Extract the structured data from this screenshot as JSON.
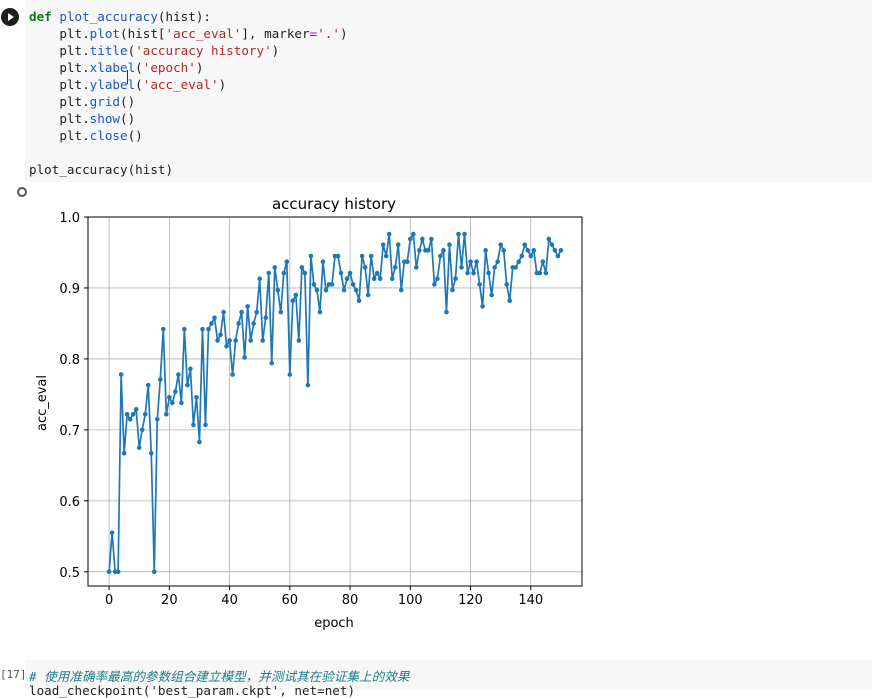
{
  "cell1": {
    "lines": [
      {
        "kw": "def",
        "fn": "plot_accuracy",
        "rest": "(hist):"
      },
      {
        "pre": "    plt.",
        "fn": "plot",
        "mid1": "(hist[",
        "str1": "'acc_eval'",
        "mid2": "], marker",
        "op": "=",
        "str2": "'.'",
        "end": ")"
      },
      {
        "pre": "    plt.",
        "fn": "title",
        "mid1": "(",
        "str1": "'accuracy history'",
        "end": ")"
      },
      {
        "pre": "    plt.",
        "fn": "xlabel",
        "mid1": "(",
        "str1": "'epoch'",
        "end": ")"
      },
      {
        "pre": "    plt.",
        "fn": "ylabel",
        "mid1": "(",
        "str1": "'acc_eval'",
        "end": ")"
      },
      {
        "pre": "    plt.",
        "fn": "grid",
        "end": "()"
      },
      {
        "pre": "    plt.",
        "fn": "show",
        "end": "()"
      },
      {
        "pre": "    plt.",
        "fn": "close",
        "end": "()"
      },
      {
        "plain": ""
      },
      {
        "plain": "plot_accuracy(hist)"
      }
    ]
  },
  "cell2": {
    "exec_count": "[17]",
    "comment": "# 使用准确率最高的参数组合建立模型，并测试其在验证集上的效果",
    "line2": "load_checkpoint('best_param.ckpt', net=net)"
  },
  "chart_data": {
    "type": "line",
    "title": "accuracy history",
    "xlabel": "epoch",
    "ylabel": "acc_eval",
    "xlim": [
      -7,
      157
    ],
    "ylim": [
      0.48,
      1.0
    ],
    "xticks": [
      0,
      20,
      40,
      60,
      80,
      100,
      120,
      140
    ],
    "yticks": [
      0.5,
      0.6,
      0.7,
      0.8,
      0.9,
      1.0
    ],
    "grid": true,
    "marker": ".",
    "color": "#1f77b4",
    "y": [
      0.5,
      0.555,
      0.5,
      0.5,
      0.778,
      0.667,
      0.722,
      0.715,
      0.722,
      0.729,
      0.675,
      0.7,
      0.722,
      0.763,
      0.667,
      0.5,
      0.715,
      0.771,
      0.842,
      0.722,
      0.746,
      0.738,
      0.754,
      0.778,
      0.738,
      0.842,
      0.763,
      0.786,
      0.707,
      0.746,
      0.683,
      0.842,
      0.707,
      0.842,
      0.85,
      0.858,
      0.826,
      0.834,
      0.866,
      0.818,
      0.826,
      0.778,
      0.826,
      0.85,
      0.866,
      0.802,
      0.874,
      0.826,
      0.85,
      0.866,
      0.913,
      0.826,
      0.858,
      0.921,
      0.794,
      0.929,
      0.897,
      0.866,
      0.921,
      0.937,
      0.778,
      0.882,
      0.89,
      0.826,
      0.929,
      0.921,
      0.763,
      0.945,
      0.905,
      0.897,
      0.866,
      0.937,
      0.897,
      0.905,
      0.905,
      0.945,
      0.945,
      0.921,
      0.897,
      0.913,
      0.921,
      0.905,
      0.897,
      0.882,
      0.945,
      0.929,
      0.89,
      0.945,
      0.913,
      0.921,
      0.913,
      0.961,
      0.945,
      0.976,
      0.913,
      0.929,
      0.961,
      0.897,
      0.937,
      0.937,
      0.969,
      0.976,
      0.929,
      0.953,
      0.969,
      0.953,
      0.953,
      0.969,
      0.905,
      0.913,
      0.945,
      0.953,
      0.866,
      0.961,
      0.897,
      0.913,
      0.976,
      0.929,
      0.976,
      0.921,
      0.937,
      0.921,
      0.937,
      0.905,
      0.874,
      0.953,
      0.921,
      0.89,
      0.929,
      0.937,
      0.961,
      0.953,
      0.905,
      0.882,
      0.929,
      0.929,
      0.937,
      0.945,
      0.961,
      0.953,
      0.945,
      0.953,
      0.921,
      0.921,
      0.937,
      0.921,
      0.969,
      0.961,
      0.953,
      0.945,
      0.953
    ]
  }
}
